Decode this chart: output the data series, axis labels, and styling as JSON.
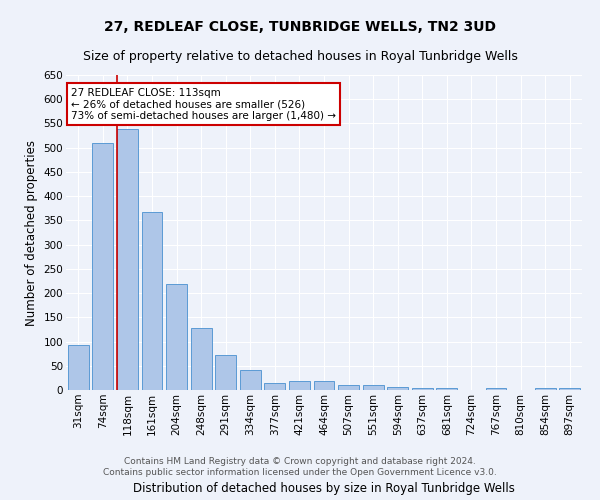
{
  "title": "27, REDLEAF CLOSE, TUNBRIDGE WELLS, TN2 3UD",
  "subtitle": "Size of property relative to detached houses in Royal Tunbridge Wells",
  "xlabel": "Distribution of detached houses by size in Royal Tunbridge Wells",
  "ylabel": "Number of detached properties",
  "footer_line1": "Contains HM Land Registry data © Crown copyright and database right 2024.",
  "footer_line2": "Contains public sector information licensed under the Open Government Licence v3.0.",
  "categories": [
    "31sqm",
    "74sqm",
    "118sqm",
    "161sqm",
    "204sqm",
    "248sqm",
    "291sqm",
    "334sqm",
    "377sqm",
    "421sqm",
    "464sqm",
    "507sqm",
    "551sqm",
    "594sqm",
    "637sqm",
    "681sqm",
    "724sqm",
    "767sqm",
    "810sqm",
    "854sqm",
    "897sqm"
  ],
  "values": [
    92,
    510,
    538,
    368,
    218,
    127,
    73,
    42,
    15,
    19,
    19,
    11,
    10,
    6,
    5,
    5,
    0,
    5,
    0,
    4,
    4
  ],
  "bar_color": "#aec6e8",
  "bar_edge_color": "#5b9bd5",
  "highlight_bar_index": 2,
  "annotation_line1": "27 REDLEAF CLOSE: 113sqm",
  "annotation_line2": "← 26% of detached houses are smaller (526)",
  "annotation_line3": "73% of semi-detached houses are larger (1,480) →",
  "annotation_box_color": "#ffffff",
  "annotation_box_edge_color": "#cc0000",
  "annotation_text_color": "#000000",
  "highlight_line_color": "#cc0000",
  "ylim": [
    0,
    650
  ],
  "yticks": [
    0,
    50,
    100,
    150,
    200,
    250,
    300,
    350,
    400,
    450,
    500,
    550,
    600,
    650
  ],
  "background_color": "#eef2fa",
  "grid_color": "#ffffff",
  "title_fontsize": 10,
  "subtitle_fontsize": 9,
  "xlabel_fontsize": 8.5,
  "ylabel_fontsize": 8.5,
  "tick_fontsize": 7.5,
  "footer_fontsize": 6.5,
  "bar_width": 0.85
}
